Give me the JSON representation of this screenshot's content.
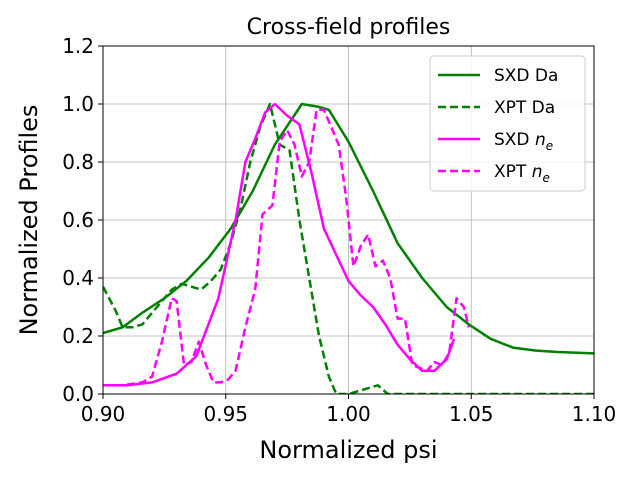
{
  "chart_data": {
    "type": "line",
    "title": "Cross-field profiles",
    "xlabel": "Normalized psi",
    "ylabel": "Normalized Profiles",
    "xlim": [
      0.9,
      1.1
    ],
    "ylim": [
      0.0,
      1.2
    ],
    "xticks": [
      "0.90",
      "0.95",
      "1.00",
      "1.05",
      "1.10"
    ],
    "yticks": [
      "0.0",
      "0.2",
      "0.4",
      "0.6",
      "0.8",
      "1.0",
      "1.2"
    ],
    "xtick_values": [
      0.9,
      0.95,
      1.0,
      1.05,
      1.1
    ],
    "ytick_values": [
      0.0,
      0.2,
      0.4,
      0.6,
      0.8,
      1.0,
      1.2
    ],
    "grid": true,
    "legend_position": "top-right",
    "series": [
      {
        "name": "SXD Da",
        "label_main": "SXD Da",
        "label_sub": "",
        "color": "#008000",
        "style": "solid",
        "x": [
          0.9,
          0.908,
          0.916,
          0.925,
          0.934,
          0.943,
          0.952,
          0.961,
          0.97,
          0.981,
          0.988,
          0.992,
          1.0,
          1.01,
          1.02,
          1.03,
          1.04,
          1.049,
          1.058,
          1.067,
          1.076,
          1.085,
          1.1
        ],
        "values": [
          0.21,
          0.23,
          0.28,
          0.33,
          0.39,
          0.47,
          0.57,
          0.7,
          0.86,
          1.0,
          0.99,
          0.98,
          0.87,
          0.7,
          0.52,
          0.4,
          0.3,
          0.24,
          0.19,
          0.16,
          0.15,
          0.145,
          0.14
        ]
      },
      {
        "name": "XPT Da",
        "label_main": "XPT Da",
        "label_sub": "",
        "color": "#008000",
        "style": "dashed",
        "x": [
          0.9,
          0.905,
          0.908,
          0.912,
          0.916,
          0.92,
          0.924,
          0.928,
          0.932,
          0.936,
          0.94,
          0.944,
          0.948,
          0.952,
          0.956,
          0.96,
          0.964,
          0.968,
          0.972,
          0.976,
          0.98,
          0.984,
          0.988,
          0.992,
          0.995,
          1.0,
          1.004,
          1.008,
          1.012,
          1.016,
          1.1
        ],
        "values": [
          0.37,
          0.29,
          0.23,
          0.23,
          0.24,
          0.28,
          0.32,
          0.36,
          0.38,
          0.37,
          0.36,
          0.39,
          0.43,
          0.52,
          0.64,
          0.8,
          0.92,
          1.0,
          0.86,
          0.84,
          0.6,
          0.4,
          0.2,
          0.06,
          0.0,
          0.0,
          0.01,
          0.02,
          0.03,
          0.0,
          0.0
        ]
      },
      {
        "name": "SXD n_e",
        "label_main": "SXD ",
        "label_sub": "e",
        "color": "#ff00ff",
        "style": "solid",
        "x": [
          0.9,
          0.91,
          0.92,
          0.93,
          0.938,
          0.947,
          0.954,
          0.958,
          0.962,
          0.966,
          0.97,
          0.975,
          0.98,
          0.985,
          0.99,
          0.995,
          1.0,
          1.005,
          1.01,
          1.015,
          1.02,
          1.025,
          1.03,
          1.035,
          1.04,
          1.043
        ],
        "values": [
          0.03,
          0.03,
          0.04,
          0.07,
          0.13,
          0.33,
          0.6,
          0.8,
          0.88,
          0.97,
          1.0,
          0.96,
          0.93,
          0.76,
          0.57,
          0.48,
          0.39,
          0.34,
          0.3,
          0.24,
          0.17,
          0.12,
          0.08,
          0.08,
          0.12,
          0.19
        ]
      },
      {
        "name": "XPT n_e",
        "label_main": "XPT ",
        "label_sub": "e",
        "color": "#ff00ff",
        "style": "dashed",
        "x": [
          0.9,
          0.908,
          0.916,
          0.92,
          0.924,
          0.928,
          0.93,
          0.933,
          0.936,
          0.939,
          0.942,
          0.945,
          0.948,
          0.951,
          0.954,
          0.958,
          0.962,
          0.965,
          0.969,
          0.972,
          0.975,
          0.978,
          0.981,
          0.984,
          0.987,
          0.99,
          0.993,
          0.996,
          0.999,
          1.002,
          1.005,
          1.008,
          1.011,
          1.014,
          1.017,
          1.02,
          1.023,
          1.026,
          1.029,
          1.032,
          1.035,
          1.038,
          1.041,
          1.044,
          1.047,
          1.049
        ],
        "values": [
          0.03,
          0.03,
          0.04,
          0.06,
          0.18,
          0.33,
          0.32,
          0.1,
          0.11,
          0.18,
          0.1,
          0.04,
          0.04,
          0.05,
          0.08,
          0.23,
          0.36,
          0.62,
          0.65,
          0.87,
          0.91,
          0.86,
          0.75,
          0.8,
          0.98,
          0.98,
          0.92,
          0.86,
          0.68,
          0.44,
          0.51,
          0.55,
          0.44,
          0.46,
          0.4,
          0.26,
          0.26,
          0.1,
          0.09,
          0.08,
          0.11,
          0.1,
          0.14,
          0.33,
          0.3,
          0.23
        ]
      }
    ]
  }
}
